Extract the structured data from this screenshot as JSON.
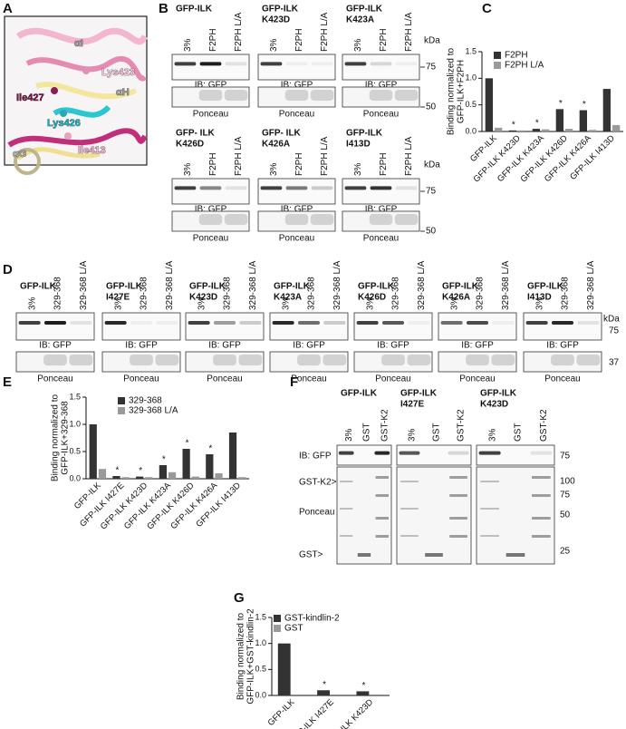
{
  "panel_a": {
    "label": "A",
    "annotations": [
      "αI",
      "Lys423",
      "αH",
      "Ile427",
      "Lys426",
      "Ile413",
      "αG"
    ]
  },
  "panel_b": {
    "label": "B",
    "rows": [
      {
        "kda": "kDa",
        "markers": [
          "75",
          "50"
        ]
      },
      {
        "kda": "kDa",
        "markers": [
          "75",
          "50"
        ]
      }
    ],
    "blots": [
      {
        "title": [
          "GFP-ILK"
        ],
        "lanes": [
          "3%",
          "F2PH",
          "F2PH L/A"
        ],
        "ib": "IB: GFP",
        "stain": "Ponceau"
      },
      {
        "title": [
          "GFP-ILK",
          "K423D"
        ],
        "lanes": [
          "3%",
          "F2PH",
          "F2PH L/A"
        ],
        "ib": "IB: GFP",
        "stain": "Ponceau"
      },
      {
        "title": [
          "GFP-ILK",
          "K423A"
        ],
        "lanes": [
          "3%",
          "F2PH",
          "F2PH L/A"
        ],
        "ib": "IB: GFP",
        "stain": "Ponceau"
      },
      {
        "title": [
          "GFP- ILK",
          "K426D"
        ],
        "lanes": [
          "3%",
          "F2PH",
          "F2PH L/A"
        ],
        "ib": "IB: GFP",
        "stain": "Ponceau"
      },
      {
        "title": [
          "GFP- ILK",
          "K426A"
        ],
        "lanes": [
          "3%",
          "F2PH",
          "F2PH L/A"
        ],
        "ib": "IB: GFP",
        "stain": "Ponceau"
      },
      {
        "title": [
          "GFP-ILK",
          "I413D"
        ],
        "lanes": [
          "3%",
          "F2PH",
          "F2PH L/A"
        ],
        "ib": "IB: GFP",
        "stain": "Ponceau"
      }
    ]
  },
  "panel_d": {
    "label": "D",
    "kda": "kDa",
    "markers": [
      "75",
      "37"
    ],
    "blots": [
      {
        "title": [
          "GFP-ILK"
        ],
        "lanes": [
          "3%",
          "329-368",
          "329-368 L/A"
        ],
        "ib": "IB: GFP",
        "stain": "Ponceau"
      },
      {
        "title": [
          "GFP-ILK",
          "I427E"
        ],
        "lanes": [
          "3%",
          "329-368",
          "329-368 L/A"
        ],
        "ib": "IB: GFP",
        "stain": "Ponceau"
      },
      {
        "title": [
          "GFP-ILK",
          "K423D"
        ],
        "lanes": [
          "3%",
          "329-368",
          "329-368 L/A"
        ],
        "ib": "IB: GFP",
        "stain": "Ponceau"
      },
      {
        "title": [
          "GFP-ILK",
          "K423A"
        ],
        "lanes": [
          "3%",
          "329-368",
          "329-368 L/A"
        ],
        "ib": "IB: GFP",
        "stain": "Ponceau"
      },
      {
        "title": [
          "GFP-ILK",
          "K426D"
        ],
        "lanes": [
          "3%",
          "329-368",
          "329-368 L/A"
        ],
        "ib": "IB: GFP",
        "stain": "Ponceau"
      },
      {
        "title": [
          "GFP-ILK",
          "K426A"
        ],
        "lanes": [
          "3%",
          "329-368",
          "329-368 L/A"
        ],
        "ib": "IB: GFP",
        "stain": "Ponceau"
      },
      {
        "title": [
          "GFP-ILK",
          "I413D"
        ],
        "lanes": [
          "3%",
          "329-368",
          "329-368 L/A"
        ],
        "ib": "IB: GFP",
        "stain": "Ponceau"
      }
    ]
  },
  "panel_f": {
    "label": "F",
    "side_labels": [
      "IB: GFP",
      "GST-K2>",
      "Ponceau",
      "GST>"
    ],
    "markers": [
      "75",
      "100",
      "75",
      "50",
      "25"
    ],
    "blots": [
      {
        "title": [
          "GFP-ILK"
        ],
        "lanes": [
          "3%",
          "GST",
          "GST-K2"
        ]
      },
      {
        "title": [
          "GFP-ILK",
          "I427E"
        ],
        "lanes": [
          "3%",
          "GST",
          "GST-K2"
        ]
      },
      {
        "title": [
          "GFP-ILK",
          "K423D"
        ],
        "lanes": [
          "3%",
          "GST",
          "GST-K2"
        ]
      }
    ]
  },
  "chart_data": [
    {
      "type": "bar",
      "label": "C",
      "y_label": [
        "Binding normalized to",
        "GFP-ILK+F2PH"
      ],
      "categories": [
        "GFP-ILK",
        "GFP-ILK K423D",
        "GFP-ILK K423A",
        "GFP-ILK K426D",
        "GFP-ILK K426A",
        "GFP-ILK I413D"
      ],
      "series": [
        {
          "name": "F2PH",
          "color": "#333333",
          "values": [
            1.0,
            0.02,
            0.05,
            0.42,
            0.4,
            0.8
          ]
        },
        {
          "name": "F2PH L/A",
          "color": "#9a9a9a",
          "values": [
            0.07,
            0.02,
            0.04,
            0.05,
            0.03,
            0.12
          ]
        }
      ],
      "markers": [
        null,
        "*",
        "*",
        "*",
        "*",
        null
      ],
      "ylim": [
        0,
        1.5
      ],
      "yticks": [
        {
          "value": 0,
          "label": "0.0"
        },
        {
          "value": 0.5,
          "label": "0.5"
        },
        {
          "value": 1,
          "label": "1.0"
        },
        {
          "value": 1.5,
          "label": "1.5"
        }
      ]
    },
    {
      "type": "bar",
      "label": "E",
      "y_label": [
        "Binding normalized to",
        "GFP-ILK+329-368"
      ],
      "categories": [
        "GFP-ILK",
        "GFP-ILK I427E",
        "GFP-ILK K423D",
        "GFP-ILK K423A",
        "GFP-ILK K426D",
        "GFP-ILK K426A",
        "GFP-ILK I413D"
      ],
      "series": [
        {
          "name": "329-368",
          "color": "#333333",
          "values": [
            1.0,
            0.05,
            0.04,
            0.25,
            0.55,
            0.45,
            0.85
          ]
        },
        {
          "name": "329-368 L/A",
          "color": "#9a9a9a",
          "values": [
            0.18,
            0.03,
            0.03,
            0.12,
            0.04,
            0.1,
            0.03
          ]
        }
      ],
      "markers": [
        null,
        "*",
        "*",
        "*",
        "*",
        "*",
        null
      ],
      "ylim": [
        0,
        1.5
      ],
      "yticks": [
        {
          "value": 0,
          "label": "0.0"
        },
        {
          "value": 0.5,
          "label": "0.5"
        },
        {
          "value": 1,
          "label": "1.0"
        },
        {
          "value": 1.5,
          "label": "1.5"
        }
      ]
    },
    {
      "type": "bar",
      "label": "G",
      "y_label": [
        "Binding normalized to",
        "GFP-ILK+GST-kindlin-2"
      ],
      "categories": [
        "GFP-ILK",
        "GFP-ILK I427E",
        "GFP-ILK K423D"
      ],
      "series": [
        {
          "name": "GST-kindlin-2",
          "color": "#333333",
          "values": [
            1.0,
            0.1,
            0.08
          ]
        },
        {
          "name": "GST",
          "color": "#9a9a9a",
          "values": [
            0,
            0,
            0
          ]
        }
      ],
      "markers": [
        null,
        "*",
        "*"
      ],
      "ylim": [
        0,
        1.5
      ],
      "yticks": [
        {
          "value": 0,
          "label": "0.0"
        },
        {
          "value": 0.5,
          "label": "0.5"
        },
        {
          "value": 1,
          "label": "1.0"
        },
        {
          "value": 1.5,
          "label": "1.5"
        }
      ]
    }
  ]
}
